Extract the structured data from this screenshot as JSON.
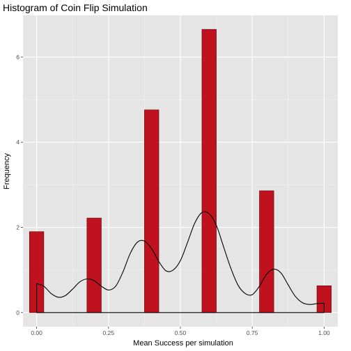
{
  "chart_data": {
    "type": "bar",
    "title": "Histogram of Coin Flip Simulation",
    "xlabel": "Mean Success per simulation",
    "ylabel": "Frequency",
    "xlim": [
      -0.0475,
      1.0475
    ],
    "ylim": [
      -0.33,
      6.98
    ],
    "x_ticks": [
      0,
      0.25,
      0.5,
      0.75,
      1
    ],
    "x_tick_labels": [
      "0.00",
      "0.25",
      "0.50",
      "0.75",
      "1.00"
    ],
    "y_ticks": [
      0,
      2,
      4,
      6
    ],
    "y_tick_labels": [
      "0",
      "2",
      "4",
      "6"
    ],
    "grid": true,
    "legend": "none",
    "bin_width": 0.05,
    "bins": [
      {
        "x": 0.0,
        "height": 1.9
      },
      {
        "x": 0.2,
        "height": 2.22
      },
      {
        "x": 0.4,
        "height": 4.76
      },
      {
        "x": 0.6,
        "height": 6.65
      },
      {
        "x": 0.8,
        "height": 2.86
      },
      {
        "x": 1.0,
        "height": 0.63
      }
    ],
    "density": {
      "x": [
        0.0,
        0.025,
        0.05,
        0.075,
        0.1,
        0.125,
        0.15,
        0.175,
        0.2,
        0.225,
        0.25,
        0.275,
        0.3,
        0.325,
        0.35,
        0.375,
        0.4,
        0.425,
        0.45,
        0.475,
        0.5,
        0.525,
        0.55,
        0.575,
        0.6,
        0.625,
        0.65,
        0.675,
        0.7,
        0.725,
        0.75,
        0.775,
        0.8,
        0.825,
        0.85,
        0.875,
        0.9,
        0.925,
        0.95,
        0.975,
        1.0
      ],
      "y": [
        0.68,
        0.62,
        0.45,
        0.36,
        0.4,
        0.55,
        0.72,
        0.79,
        0.75,
        0.62,
        0.53,
        0.62,
        0.95,
        1.38,
        1.65,
        1.68,
        1.5,
        1.2,
        0.98,
        1.0,
        1.22,
        1.65,
        2.1,
        2.35,
        2.32,
        2.05,
        1.55,
        1.05,
        0.65,
        0.45,
        0.42,
        0.62,
        0.9,
        1.02,
        0.93,
        0.65,
        0.38,
        0.23,
        0.19,
        0.21,
        0.22
      ]
    },
    "colors": {
      "bar_fill": "#c0111f",
      "bar_stroke": "#5a0a0e",
      "panel": "#e5e5e5",
      "grid_major": "#ffffff",
      "line": "#000000"
    }
  }
}
